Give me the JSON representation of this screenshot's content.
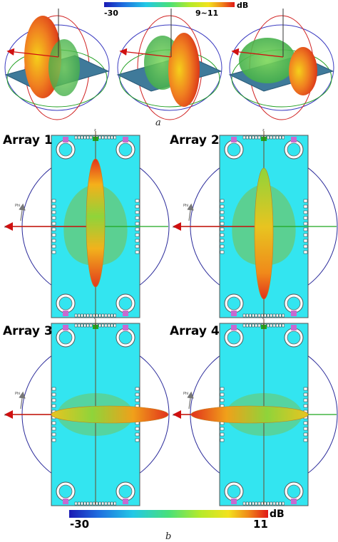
{
  "top_colorbar": {
    "min_label": "-30",
    "max_label": "9~11",
    "unit": "dB"
  },
  "caption_a": "a",
  "arrays": [
    {
      "title": "Array 1"
    },
    {
      "title": "Array 2"
    },
    {
      "title": "Array 3"
    },
    {
      "title": "Array 4"
    }
  ],
  "axis_labels": {
    "z": "z",
    "x": "x",
    "phi": "Phi"
  },
  "bottom_colorbar": {
    "min_label": "-30",
    "max_label": "11",
    "unit": "dB"
  },
  "caption_b": "b",
  "colors": {
    "substrate": "#33e5f0",
    "pattern_hot": "#e8321e",
    "pattern_mid": "#f5c21a",
    "pattern_cool": "#4fc84a",
    "axis_green": "#1fa81f",
    "axis_red": "#d01010",
    "circle_blue": "#2a2a9a",
    "pad_magenta": "#c86ad0"
  }
}
